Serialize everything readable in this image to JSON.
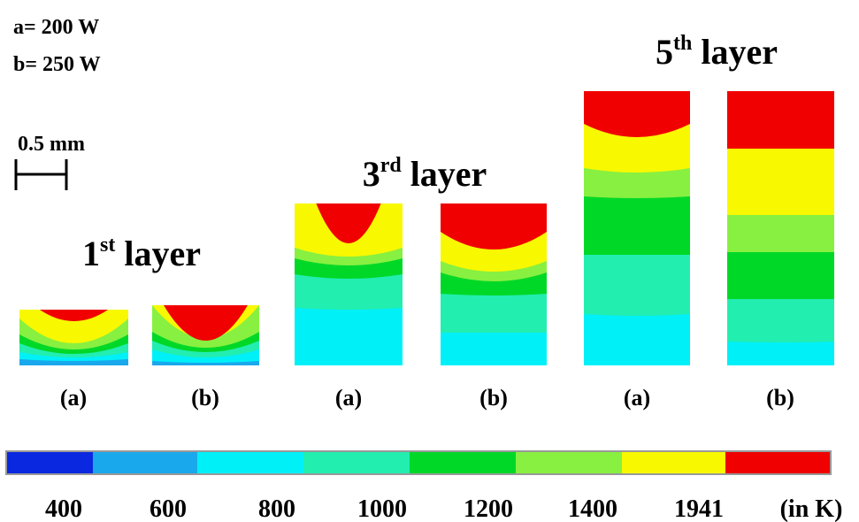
{
  "legend": {
    "a": "a= 200 W",
    "b": "b= 250 W"
  },
  "scale_bar": "0.5 mm",
  "layers": [
    {
      "number": "1",
      "suffix": "st",
      "word": "layer",
      "cases": [
        "(a)",
        "(b)"
      ]
    },
    {
      "number": "3",
      "suffix": "rd",
      "word": "layer",
      "cases": [
        "(a)",
        "(b)"
      ]
    },
    {
      "number": "5",
      "suffix": "th",
      "word": "layer",
      "cases": [
        "(a)",
        "(b)"
      ]
    }
  ],
  "colorbar": {
    "labels": [
      "400",
      "600",
      "800",
      "1000",
      "1200",
      "1400",
      "1941"
    ],
    "unit": "(in K)"
  }
}
